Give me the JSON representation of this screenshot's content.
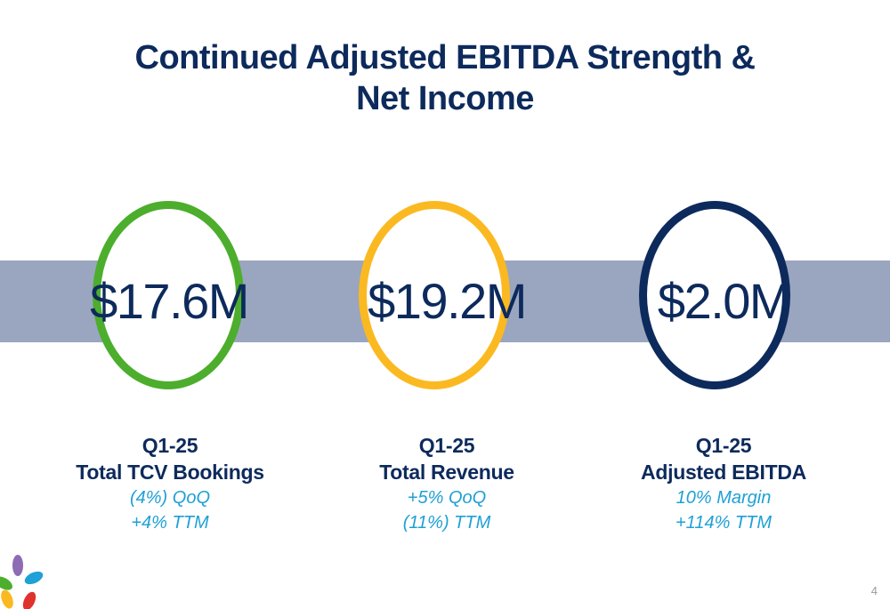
{
  "slide": {
    "title_line1": "Continued Adjusted EBITDA Strength &",
    "title_line2": "Net Income",
    "page_number": "4",
    "colors": {
      "title": "#0d2a5c",
      "band": "#9aa6bf",
      "green_ring": "#4cae2c",
      "yellow_ring": "#fbb921",
      "navy_ring": "#0d2a5c",
      "note": "#1fa0d6"
    }
  },
  "metrics": [
    {
      "value": "$17.6M",
      "period": "Q1-25",
      "metric": "Total TCV Bookings",
      "note1": "(4%) QoQ",
      "note2": "+4% TTM",
      "ring_color": "#4cae2c"
    },
    {
      "value": "$19.2M",
      "period": "Q1-25",
      "metric": "Total Revenue",
      "note1": "+5% QoQ",
      "note2": "(11%) TTM",
      "ring_color": "#fbb921"
    },
    {
      "value": "$2.0M",
      "period": "Q1-25",
      "metric": "Adjusted EBITDA",
      "note1": "10% Margin",
      "note2": "+114% TTM",
      "ring_color": "#0d2a5c"
    }
  ],
  "logo": {
    "icon": "flower-petals-logo-icon",
    "colors": [
      "#8d6bb5",
      "#1fa0d6",
      "#4cae2c",
      "#fbb921",
      "#e0312d"
    ]
  }
}
